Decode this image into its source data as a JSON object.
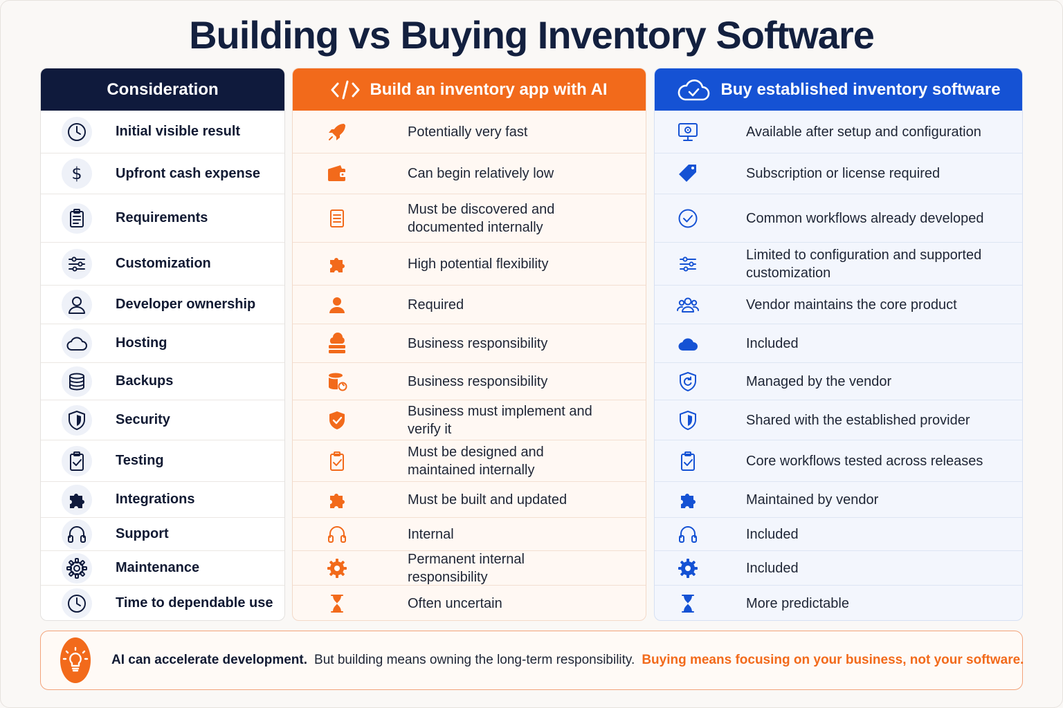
{
  "title": "Building vs Buying Inventory Software",
  "colors": {
    "navy": "#0f1a3c",
    "orange": "#f26a1b",
    "blue": "#1552d4"
  },
  "columns": {
    "consideration": {
      "header": "Consideration"
    },
    "build": {
      "header": "Build an inventory app with AI",
      "header_icon": "code-icon"
    },
    "buy": {
      "header": "Buy established inventory software",
      "header_icon": "cloud-check-icon"
    }
  },
  "rows": [
    {
      "consideration": "Initial visible result",
      "build": "Potentially very fast",
      "buy": "Available after setup and configuration",
      "icons": [
        "clock-icon",
        "rocket-icon",
        "monitor-gear-icon"
      ]
    },
    {
      "consideration": "Upfront cash expense",
      "build": "Can begin relatively low",
      "buy": "Subscription or license required",
      "icons": [
        "dollar-icon",
        "wallet-icon",
        "tag-icon"
      ]
    },
    {
      "consideration": "Requirements",
      "build": "Must be discovered and documented internally",
      "buy": "Common workflows already developed",
      "icons": [
        "clipboard-list-icon",
        "document-list-icon",
        "check-circle-icon"
      ]
    },
    {
      "consideration": "Customization",
      "build": "High potential flexibility",
      "buy": "Limited to configuration and supported customization",
      "icons": [
        "sliders-icon",
        "puzzle-icon",
        "sliders-icon"
      ]
    },
    {
      "consideration": "Developer ownership",
      "build": "Required",
      "buy": "Vendor maintains the core product",
      "icons": [
        "user-icon",
        "user-icon",
        "users-icon"
      ]
    },
    {
      "consideration": "Hosting",
      "build": "Business responsibility",
      "buy": "Included",
      "icons": [
        "cloud-icon",
        "cloud-server-icon",
        "cloud-icon"
      ]
    },
    {
      "consideration": "Backups",
      "build": "Business responsibility",
      "buy": "Managed by the vendor",
      "icons": [
        "database-icon",
        "database-refresh-icon",
        "shield-refresh-icon"
      ]
    },
    {
      "consideration": "Security",
      "build": "Business must implement and verify it",
      "buy": "Shared with the established provider",
      "icons": [
        "shield-icon",
        "shield-check-icon",
        "shield-icon"
      ]
    },
    {
      "consideration": "Testing",
      "build": "Must be designed and maintained internally",
      "buy": "Core workflows tested across releases",
      "icons": [
        "clipboard-check-icon",
        "clipboard-check-icon",
        "clipboard-check-icon"
      ]
    },
    {
      "consideration": "Integrations",
      "build": "Must be built and updated",
      "buy": "Maintained by vendor",
      "icons": [
        "puzzle-icon",
        "puzzle-icon",
        "puzzle-icon"
      ]
    },
    {
      "consideration": "Support",
      "build": "Internal",
      "buy": "Included",
      "icons": [
        "headset-icon",
        "headset-icon",
        "headset-icon"
      ]
    },
    {
      "consideration": "Maintenance",
      "build": "Permanent internal responsibility",
      "buy": "Included",
      "icons": [
        "gear-icon",
        "gear-icon",
        "gear-icon"
      ]
    },
    {
      "consideration": "Time to dependable use",
      "build": "Often uncertain",
      "buy": "More predictable",
      "icons": [
        "clock-icon",
        "hourglass-icon",
        "hourglass-icon"
      ]
    }
  ],
  "footer": {
    "icon": "lightbulb-icon",
    "bold": "AI can accelerate development.",
    "normal": "But building means owning the long-term responsibility.",
    "highlight": "Buying means focusing on your business, not your software."
  }
}
